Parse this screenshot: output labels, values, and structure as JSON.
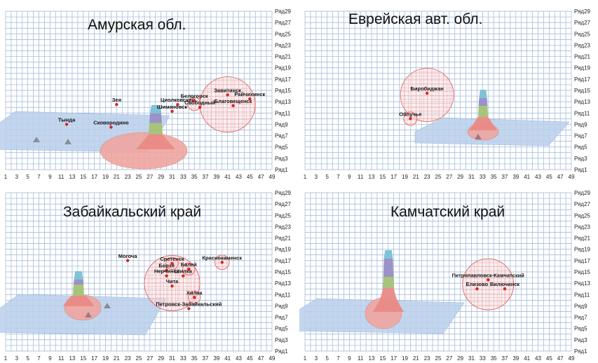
{
  "chart_data": [
    {
      "type": "3d-surface-map",
      "title": "Амурская обл.",
      "x_ticks": [
        "1",
        "3",
        "5",
        "7",
        "9",
        "11",
        "13",
        "15",
        "17",
        "19",
        "21",
        "23",
        "25",
        "27",
        "29",
        "31",
        "33",
        "35",
        "37",
        "39",
        "41",
        "43",
        "45",
        "47",
        "49"
      ],
      "y_ticks": [
        "Ряд1",
        "Ряд3",
        "Ряд5",
        "Ряд7",
        "Ряд9",
        "Ряд11",
        "Ряд13",
        "Ряд15",
        "Ряд17",
        "Ряд19",
        "Ряд21",
        "Ряд23",
        "Ряд25",
        "Ряд27",
        "Ряд29"
      ],
      "points": [
        {
          "name": "Тында",
          "x": 12,
          "y": 9
        },
        {
          "name": "Зея",
          "x": 21,
          "y": 12.5
        },
        {
          "name": "Сковородино",
          "x": 20,
          "y": 8.5
        },
        {
          "name": "Циолковский",
          "x": 32,
          "y": 12.5
        },
        {
          "name": "Шимановск",
          "x": 31,
          "y": 11.3
        },
        {
          "name": "Белогорск",
          "x": 35,
          "y": 13.2
        },
        {
          "name": "Свободный",
          "x": 36,
          "y": 12
        },
        {
          "name": "Завитинск",
          "x": 41,
          "y": 14.2
        },
        {
          "name": "Благовещенск",
          "x": 42,
          "y": 12.3
        },
        {
          "name": "Райчихинск",
          "x": 45,
          "y": 13.5
        }
      ],
      "highlight_circles": [
        {
          "x": 41,
          "y": 12.5,
          "r": 5
        },
        {
          "x": 35,
          "y": 12.6,
          "r": 1.2
        }
      ]
    },
    {
      "type": "3d-surface-map",
      "title": "Еврейская авт. обл.",
      "x_ticks": [
        "1",
        "3",
        "5",
        "7",
        "9",
        "11",
        "13",
        "15",
        "17",
        "19",
        "21",
        "23",
        "25",
        "27",
        "29",
        "31",
        "33",
        "35",
        "37",
        "39",
        "41",
        "43",
        "45",
        "47",
        "49"
      ],
      "y_ticks": [
        "Ряд1",
        "Ряд3",
        "Ряд5",
        "Ряд7",
        "Ряд9",
        "Ряд11",
        "Ряд13",
        "Ряд15",
        "Ряд17",
        "Ряд19",
        "Ряд21",
        "Ряд23",
        "Ряд25",
        "Ряд27",
        "Ряд29"
      ],
      "points": [
        {
          "name": "Биробиджан",
          "x": 23,
          "y": 14.5
        },
        {
          "name": "Облучье",
          "x": 20,
          "y": 10
        }
      ],
      "highlight_circles": [
        {
          "x": 23,
          "y": 14.2,
          "r": 4.8
        },
        {
          "x": 20,
          "y": 10,
          "r": 1.2
        }
      ]
    },
    {
      "type": "3d-surface-map",
      "title": "Забайкальский край",
      "x_ticks": [
        "1",
        "3",
        "5",
        "7",
        "9",
        "11",
        "13",
        "15",
        "17",
        "19",
        "21",
        "23",
        "25",
        "27",
        "29",
        "31",
        "33",
        "35",
        "37",
        "39",
        "41",
        "43",
        "45",
        "47",
        "49"
      ],
      "y_ticks": [
        "Ряд1",
        "Ряд3",
        "Ряд5",
        "Ряд7",
        "Ряд9",
        "Ряд11",
        "Ряд13",
        "Ряд15",
        "Ряд17",
        "Ряд19",
        "Ряд21",
        "Ряд23",
        "Ряд25",
        "Ряд27",
        "Ряд29"
      ],
      "points": [
        {
          "name": "Могоча",
          "x": 23,
          "y": 17
        },
        {
          "name": "Сретенск",
          "x": 31,
          "y": 16.5
        },
        {
          "name": "Борзя",
          "x": 30,
          "y": 15.3
        },
        {
          "name": "Балей",
          "x": 34,
          "y": 15.5
        },
        {
          "name": "Нерчинск",
          "x": 30,
          "y": 14.3
        },
        {
          "name": "Шилка",
          "x": 33,
          "y": 14.3
        },
        {
          "name": "Чита",
          "x": 31,
          "y": 12.5
        },
        {
          "name": "Краснокаменск",
          "x": 40,
          "y": 16.7
        },
        {
          "name": "Хилок",
          "x": 35,
          "y": 10.5
        },
        {
          "name": "Петровск-Забайкальский",
          "x": 34,
          "y": 8.5
        }
      ],
      "highlight_circles": [
        {
          "x": 31,
          "y": 13,
          "r": 5
        },
        {
          "x": 40,
          "y": 16.7,
          "r": 1.3
        },
        {
          "x": 35,
          "y": 10.5,
          "r": 1.1
        },
        {
          "x": 31,
          "y": 16.5,
          "r": 1.1
        },
        {
          "x": 34,
          "y": 15.5,
          "r": 1.1
        }
      ]
    },
    {
      "type": "3d-surface-map",
      "title": "Камчатский край",
      "x_ticks": [
        "1",
        "3",
        "5",
        "7",
        "9",
        "11",
        "13",
        "15",
        "17",
        "19",
        "21",
        "23",
        "25",
        "27",
        "29",
        "31",
        "33",
        "35",
        "37",
        "39",
        "41",
        "43",
        "45",
        "47",
        "49"
      ],
      "y_ticks": [
        "Ряд1",
        "Ряд3",
        "Ряд5",
        "Ряд7",
        "Ряд9",
        "Ряд11",
        "Ряд13",
        "Ряд15",
        "Ряд17",
        "Ряд19",
        "Ряд21",
        "Ряд23",
        "Ряд25",
        "Ряд27",
        "Ряд29"
      ],
      "points": [
        {
          "name": "Петропавловск-Камчатский",
          "x": 34,
          "y": 13.6
        },
        {
          "name": "Елизово",
          "x": 32,
          "y": 12
        },
        {
          "name": "Вилючинск",
          "x": 37,
          "y": 12
        }
      ],
      "highlight_circles": [
        {
          "x": 34,
          "y": 12.8,
          "r": 4.6
        }
      ]
    }
  ]
}
